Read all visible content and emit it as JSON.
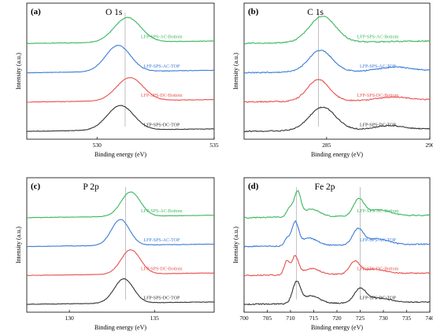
{
  "chart_data": [
    {
      "type": "line",
      "panel_label": "(a)",
      "title": "O 1s",
      "xlabel": "Binding energy (eV)",
      "ylabel": "Intensity (a.u.)",
      "xlim": [
        527,
        535
      ],
      "xticks": [
        530,
        535
      ],
      "xtick_labels": [
        "530",
        "535"
      ],
      "reference_line_x": 531.2,
      "series": [
        {
          "name": "LFP-SPS-AC-Bottom",
          "color": "#3ab65e",
          "offset": 3,
          "peaks": [
            {
              "center": 531.3,
              "height": 0.8,
              "width": 0.8
            }
          ]
        },
        {
          "name": "LFP-SPS-AC-TOP",
          "color": "#3b7bd8",
          "offset": 2,
          "peaks": [
            {
              "center": 530.9,
              "height": 0.85,
              "width": 0.75
            }
          ]
        },
        {
          "name": "LFP-SPS-DC-Bottom",
          "color": "#e8504d",
          "offset": 1,
          "peaks": [
            {
              "center": 531.4,
              "height": 0.75,
              "width": 0.8
            }
          ]
        },
        {
          "name": "LFP-SPS-DC-TOP",
          "color": "#333333",
          "offset": 0,
          "peaks": [
            {
              "center": 531.0,
              "height": 0.8,
              "width": 0.8
            }
          ]
        }
      ]
    },
    {
      "type": "line",
      "panel_label": "(b)",
      "title": "C 1s",
      "xlabel": "Binding energy (eV)",
      "ylabel": "Intensity (a.u.)",
      "xlim": [
        281,
        290
      ],
      "xticks": [
        285,
        290
      ],
      "xtick_labels": [
        "285",
        "290"
      ],
      "reference_line_x": 284.6,
      "series": [
        {
          "name": "LFP-SPS-AC-Bottom",
          "color": "#3ab65e",
          "offset": 3,
          "peaks": [
            {
              "center": 284.8,
              "height": 0.85,
              "width": 0.9
            }
          ]
        },
        {
          "name": "LFP-SPS-AC-TOP",
          "color": "#3b7bd8",
          "offset": 2,
          "peaks": [
            {
              "center": 284.7,
              "height": 0.7,
              "width": 0.8
            },
            {
              "center": 288.3,
              "height": 0.12,
              "width": 1.0
            }
          ]
        },
        {
          "name": "LFP-SPS-DC-Bottom",
          "color": "#e8504d",
          "offset": 1,
          "peaks": [
            {
              "center": 284.6,
              "height": 0.7,
              "width": 0.75
            },
            {
              "center": 288.2,
              "height": 0.1,
              "width": 1.0
            }
          ]
        },
        {
          "name": "LFP-SPS-DC-TOP",
          "color": "#333333",
          "offset": 0,
          "peaks": [
            {
              "center": 284.8,
              "height": 0.75,
              "width": 0.9
            },
            {
              "center": 288.0,
              "height": 0.12,
              "width": 1.0
            }
          ]
        }
      ]
    },
    {
      "type": "line",
      "panel_label": "(c)",
      "title": "P 2p",
      "xlabel": "Binding energy (eV)",
      "ylabel": "Intensity (a.u.)",
      "xlim": [
        127.5,
        138.5
      ],
      "xticks": [
        130,
        135
      ],
      "xtick_labels": [
        "130",
        "135"
      ],
      "reference_line_x": 133.3,
      "series": [
        {
          "name": "LFP-SPS-AC-Bottom",
          "color": "#3ab65e",
          "offset": 3,
          "peaks": [
            {
              "center": 133.6,
              "height": 0.8,
              "width": 0.8
            }
          ]
        },
        {
          "name": "LFP-SPS-AC-TOP",
          "color": "#3b7bd8",
          "offset": 2,
          "peaks": [
            {
              "center": 133.0,
              "height": 0.85,
              "width": 0.75
            }
          ]
        },
        {
          "name": "LFP-SPS-DC-Bottom",
          "color": "#e8504d",
          "offset": 1,
          "peaks": [
            {
              "center": 133.6,
              "height": 0.8,
              "width": 0.8
            }
          ]
        },
        {
          "name": "LFP-SPS-DC-TOP",
          "color": "#333333",
          "offset": 0,
          "peaks": [
            {
              "center": 133.2,
              "height": 0.8,
              "width": 0.8
            }
          ]
        }
      ]
    },
    {
      "type": "line",
      "panel_label": "(d)",
      "title": "Fe 2p",
      "xlabel": "Binding energy (eV)",
      "ylabel": "Intensity (a.u.)",
      "xlim": [
        700,
        740
      ],
      "xticks": [
        700,
        705,
        710,
        715,
        720,
        725,
        730,
        735,
        740
      ],
      "xtick_labels": [
        "700",
        "705",
        "710",
        "715",
        "720",
        "725",
        "730",
        "735",
        "740"
      ],
      "reference_lines_x": [
        711.3,
        725.0
      ],
      "series": [
        {
          "name": "LFP-SPS-AC-Bottom",
          "color": "#3ab65e",
          "offset": 3,
          "peaks": [
            {
              "center": 709.8,
              "height": 0.3,
              "width": 0.9
            },
            {
              "center": 711.5,
              "height": 0.8,
              "width": 1.0
            },
            {
              "center": 714.5,
              "height": 0.25,
              "width": 2.5
            },
            {
              "center": 724.7,
              "height": 0.55,
              "width": 1.6
            },
            {
              "center": 729.0,
              "height": 0.2,
              "width": 3.5
            }
          ]
        },
        {
          "name": "LFP-SPS-AC-TOP",
          "color": "#3b7bd8",
          "offset": 2,
          "peaks": [
            {
              "center": 709.3,
              "height": 0.25,
              "width": 0.8
            },
            {
              "center": 711.0,
              "height": 0.75,
              "width": 1.0
            },
            {
              "center": 714.0,
              "height": 0.25,
              "width": 2.5
            },
            {
              "center": 724.5,
              "height": 0.5,
              "width": 1.6
            },
            {
              "center": 728.5,
              "height": 0.2,
              "width": 3.5
            }
          ]
        },
        {
          "name": "LFP-SPS-DC-Bottom",
          "color": "#e8504d",
          "offset": 1,
          "peaks": [
            {
              "center": 709.2,
              "height": 0.45,
              "width": 0.8
            },
            {
              "center": 711.0,
              "height": 0.6,
              "width": 1.0
            },
            {
              "center": 714.5,
              "height": 0.2,
              "width": 2.5
            },
            {
              "center": 723.8,
              "height": 0.4,
              "width": 1.5
            },
            {
              "center": 728.0,
              "height": 0.15,
              "width": 3.5
            }
          ]
        },
        {
          "name": "LFP-SPS-DC-TOP",
          "color": "#333333",
          "offset": 0,
          "peaks": [
            {
              "center": 711.3,
              "height": 0.7,
              "width": 1.2
            },
            {
              "center": 714.5,
              "height": 0.25,
              "width": 2.5
            },
            {
              "center": 725.0,
              "height": 0.45,
              "width": 1.8
            },
            {
              "center": 729.0,
              "height": 0.15,
              "width": 3.5
            }
          ]
        }
      ]
    }
  ]
}
